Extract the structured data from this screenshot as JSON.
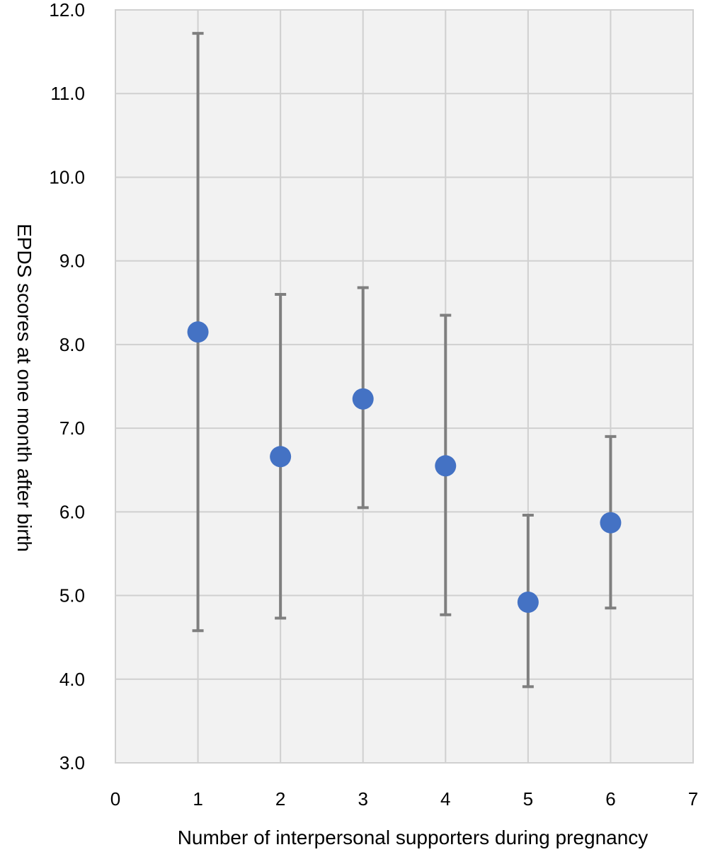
{
  "chart_data": {
    "type": "scatter",
    "title": "",
    "xlabel": "Number of interpersonal supporters during pregnancy",
    "ylabel": "EPDS scores at one month after birth",
    "xlim": [
      0,
      7
    ],
    "ylim": [
      3.0,
      12.0
    ],
    "x_ticks": [
      "0",
      "1",
      "2",
      "3",
      "4",
      "5",
      "6",
      "7"
    ],
    "y_ticks": [
      "3.0",
      "4.0",
      "5.0",
      "6.0",
      "7.0",
      "8.0",
      "9.0",
      "10.0",
      "11.0",
      "12.0"
    ],
    "grid": true,
    "legend": "none",
    "colors": {
      "plot_background": "#f2f2f2",
      "grid": "#d0d0d0",
      "marker": "#4472c4",
      "error_bar": "#7f7f7f"
    },
    "points": [
      {
        "x": 1,
        "y": 8.15,
        "low": 4.58,
        "high": 11.72
      },
      {
        "x": 2,
        "y": 6.66,
        "low": 4.73,
        "high": 8.6
      },
      {
        "x": 3,
        "y": 7.35,
        "low": 6.05,
        "high": 8.68
      },
      {
        "x": 4,
        "y": 6.55,
        "low": 4.77,
        "high": 8.35
      },
      {
        "x": 5,
        "y": 4.92,
        "low": 3.91,
        "high": 5.96
      },
      {
        "x": 6,
        "y": 5.87,
        "low": 4.85,
        "high": 6.9
      }
    ]
  }
}
